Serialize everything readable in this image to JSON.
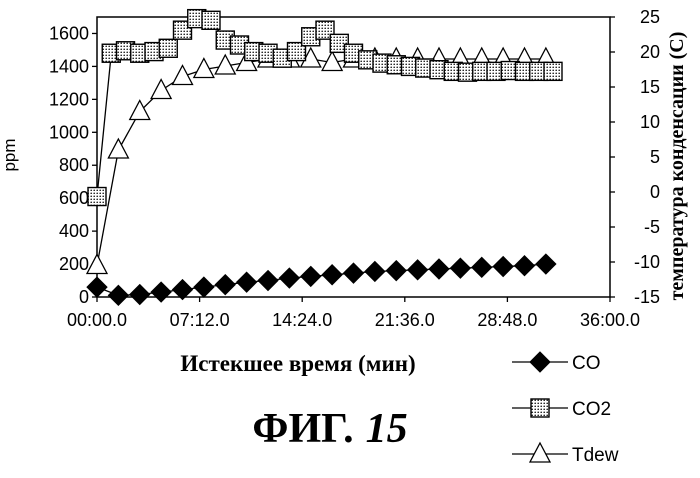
{
  "caption": {
    "prefix": "ФИГ.",
    "number": "15"
  },
  "chart_data": {
    "type": "line",
    "title": "",
    "xlabel": "Истекшее время (мин)",
    "ylabel": "ppm",
    "y2label": "температура конденсации (С)",
    "xlim": [
      0,
      2160
    ],
    "ylim": [
      0,
      1700
    ],
    "y2lim": [
      -15,
      25
    ],
    "x_ticks": [
      "00:00.0",
      "07:12.0",
      "14:24.0",
      "21:36.0",
      "28:48.0",
      "36:00.0"
    ],
    "y_ticks": [
      0,
      200,
      400,
      600,
      800,
      1000,
      1200,
      1400,
      1600
    ],
    "y2_ticks": [
      -15,
      -10,
      -5,
      0,
      5,
      10,
      15,
      20,
      25
    ],
    "grid": false,
    "legend_position": "bottom-right",
    "series": [
      {
        "name": "CO",
        "axis": "left",
        "marker": "diamond",
        "color": "#000000",
        "x": [
          0,
          90,
          180,
          270,
          360,
          450,
          540,
          630,
          720,
          810,
          900,
          990,
          1080,
          1170,
          1260,
          1350,
          1440,
          1530,
          1620,
          1710,
          1800,
          1890
        ],
        "y": [
          60,
          10,
          15,
          30,
          45,
          60,
          75,
          90,
          100,
          115,
          125,
          135,
          145,
          155,
          160,
          165,
          170,
          175,
          180,
          185,
          190,
          200
        ]
      },
      {
        "name": "CO2",
        "axis": "left",
        "marker": "dotted-square",
        "color": "#000000",
        "x": [
          0,
          60,
          120,
          180,
          240,
          300,
          360,
          420,
          480,
          540,
          600,
          660,
          720,
          780,
          840,
          900,
          960,
          1020,
          1080,
          1140,
          1200,
          1260,
          1320,
          1380,
          1440,
          1500,
          1560,
          1620,
          1680,
          1740,
          1800,
          1860,
          1920
        ],
        "y": [
          610,
          1480,
          1495,
          1480,
          1490,
          1510,
          1620,
          1690,
          1680,
          1560,
          1530,
          1490,
          1480,
          1450,
          1490,
          1580,
          1620,
          1540,
          1480,
          1440,
          1420,
          1410,
          1400,
          1390,
          1380,
          1370,
          1365,
          1370,
          1370,
          1375,
          1370,
          1370,
          1370
        ]
      },
      {
        "name": "Tdew",
        "axis": "right",
        "marker": "triangle",
        "color": "#000000",
        "x": [
          0,
          90,
          180,
          270,
          360,
          450,
          540,
          630,
          720,
          810,
          900,
          990,
          1080,
          1170,
          1260,
          1350,
          1440,
          1530,
          1620,
          1710,
          1800,
          1890
        ],
        "y": [
          -10.5,
          6,
          11.5,
          14.5,
          16.5,
          17.5,
          18,
          18.5,
          19,
          19,
          19,
          18.5,
          19,
          19,
          19,
          19,
          19,
          19,
          19,
          19,
          19,
          19
        ]
      }
    ]
  }
}
